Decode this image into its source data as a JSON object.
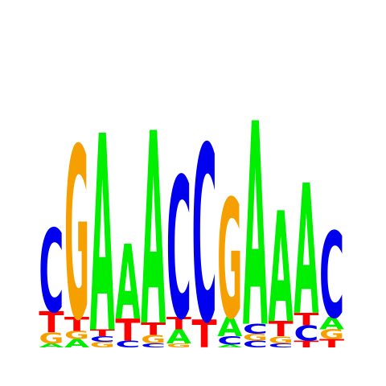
{
  "colors": {
    "A": "#00ee00",
    "C": "#0000ee",
    "G": "#f5a000",
    "T": "#ff0000",
    "background": "#ffffff"
  },
  "logo": {
    "max_bits": 2,
    "positions": [
      [
        {
          "base": "A",
          "bits": 0.03
        },
        {
          "base": "G",
          "bits": 0.08
        },
        {
          "base": "T",
          "bits": 0.15
        },
        {
          "base": "C",
          "bits": 0.6
        }
      ],
      [
        {
          "base": "A",
          "bits": 0.06
        },
        {
          "base": "G",
          "bits": 0.06
        },
        {
          "base": "T",
          "bits": 0.1
        },
        {
          "base": "G",
          "bits": 1.24
        }
      ],
      [
        {
          "base": "G",
          "bits": 0.04
        },
        {
          "base": "C",
          "bits": 0.04
        },
        {
          "base": "T",
          "bits": 0.05
        },
        {
          "base": "A",
          "bits": 1.42
        }
      ],
      [
        {
          "base": "C",
          "bits": 0.05
        },
        {
          "base": "T",
          "bits": 0.16
        },
        {
          "base": "A",
          "bits": 0.54
        }
      ],
      [
        {
          "base": "C",
          "bits": 0.03
        },
        {
          "base": "G",
          "bits": 0.06
        },
        {
          "base": "T",
          "bits": 0.09
        },
        {
          "base": "A",
          "bits": 1.39
        }
      ],
      [
        {
          "base": "G",
          "bits": 0.03
        },
        {
          "base": "A",
          "bits": 0.1
        },
        {
          "base": "T",
          "bits": 0.09
        },
        {
          "base": "C",
          "bits": 1.02
        }
      ],
      [
        {
          "base": "T",
          "bits": 0.2
        },
        {
          "base": "C",
          "bits": 1.27
        }
      ],
      [
        {
          "base": "A",
          "bits": 0.02
        },
        {
          "base": "C",
          "bits": 0.06
        },
        {
          "base": "A",
          "bits": 0.14
        },
        {
          "base": "G",
          "bits": 0.86
        }
      ],
      [
        {
          "base": "C",
          "bits": 0.05
        },
        {
          "base": "G",
          "bits": 0.05
        },
        {
          "base": "C",
          "bits": 0.07
        },
        {
          "base": "A",
          "bits": 1.47
        }
      ],
      [
        {
          "base": "C",
          "bits": 0.03
        },
        {
          "base": "G",
          "bits": 0.05
        },
        {
          "base": "T",
          "bits": 0.11
        },
        {
          "base": "A",
          "bits": 0.8
        }
      ],
      [
        {
          "base": "T",
          "bits": 0.05
        },
        {
          "base": "C",
          "bits": 0.11
        },
        {
          "base": "T",
          "bits": 0.09
        },
        {
          "base": "A",
          "bits": 0.94
        }
      ],
      [
        {
          "base": "T",
          "bits": 0.06
        },
        {
          "base": "G",
          "bits": 0.07
        },
        {
          "base": "A",
          "bits": 0.09
        },
        {
          "base": "C",
          "bits": 0.62
        }
      ]
    ]
  }
}
